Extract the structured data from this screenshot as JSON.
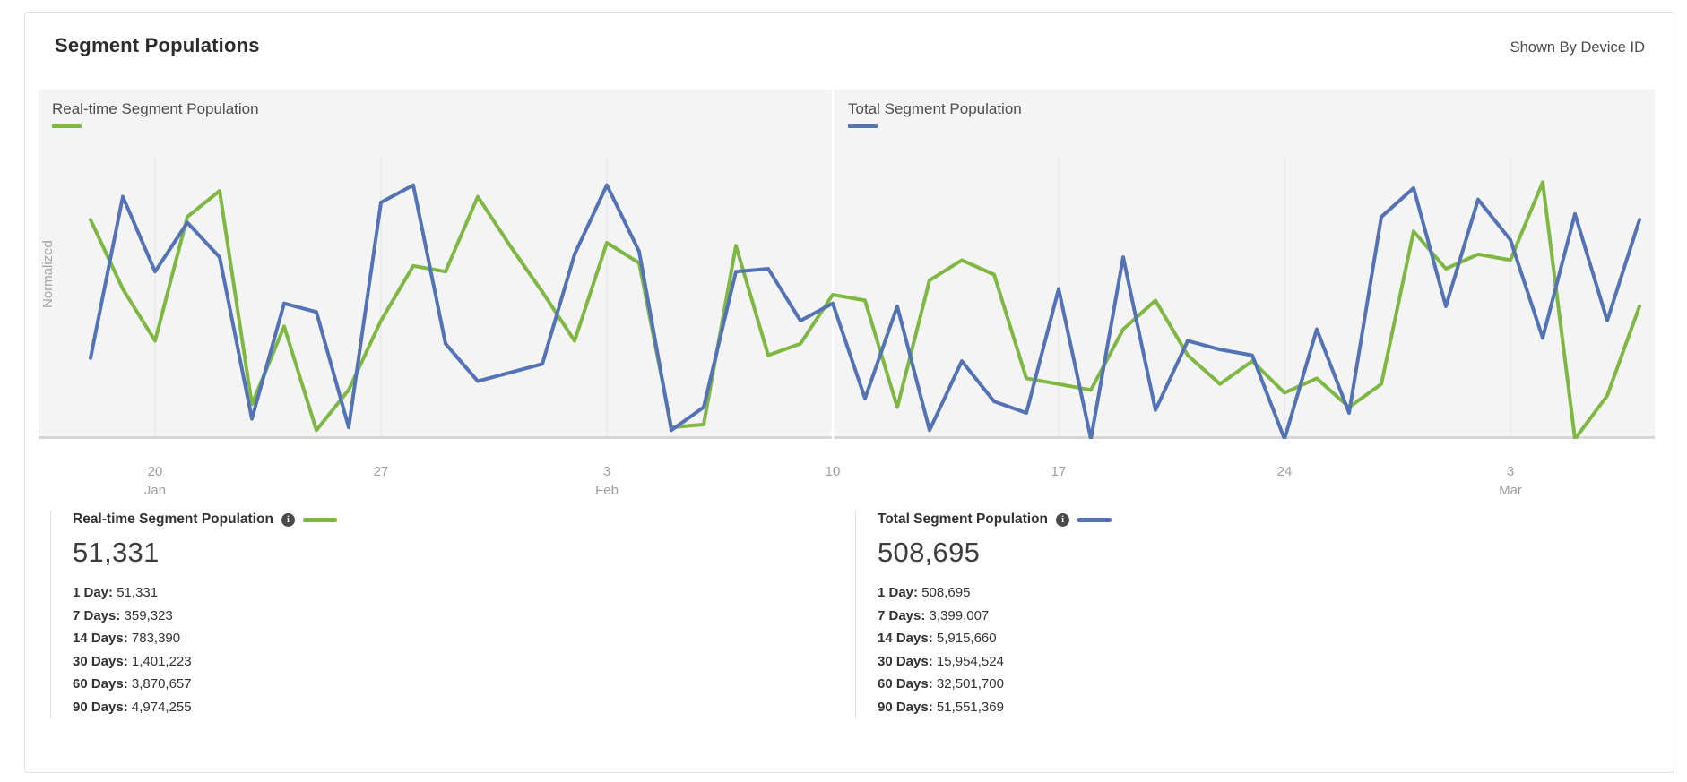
{
  "header": {
    "title": "Segment Populations",
    "shown_by": "Shown By Device ID"
  },
  "chart_panel": {
    "left_title": "Real-time Segment Population",
    "right_title": "Total Segment Population",
    "y_axis_label": "Normalized"
  },
  "colors": {
    "realtime_green": "#7EB843",
    "total_blue": "#5373B6",
    "panel_bg": "#f4f4f4",
    "gridline": "#e9e9e9",
    "axis_line": "#d2d2d2",
    "divider": "#ffffff"
  },
  "chart_data": {
    "type": "line",
    "title": "Segment Populations (normalized daily trend)",
    "ylabel": "Normalized",
    "ylim": [
      0,
      1
    ],
    "grid": "weekly-vertical",
    "legend_position": "top-inside",
    "x": [
      "Jan 18",
      "Jan 19",
      "Jan 20",
      "Jan 21",
      "Jan 22",
      "Jan 23",
      "Jan 24",
      "Jan 25",
      "Jan 26",
      "Jan 27",
      "Jan 28",
      "Jan 29",
      "Jan 30",
      "Jan 31",
      "Feb 1",
      "Feb 2",
      "Feb 3",
      "Feb 4",
      "Feb 5",
      "Feb 6",
      "Feb 7",
      "Feb 8",
      "Feb 9",
      "Feb 10",
      "Feb 11",
      "Feb 12",
      "Feb 13",
      "Feb 14",
      "Feb 15",
      "Feb 16",
      "Feb 17",
      "Feb 18",
      "Feb 19",
      "Feb 20",
      "Feb 21",
      "Feb 22",
      "Feb 23",
      "Feb 24",
      "Feb 25",
      "Feb 26",
      "Feb 27",
      "Feb 28",
      "Mar 1",
      "Mar 2",
      "Mar 3",
      "Mar 4",
      "Mar 5",
      "Mar 6",
      "Mar 7"
    ],
    "x_ticks": [
      {
        "label": "20",
        "sub": "Jan",
        "day_index": 2
      },
      {
        "label": "27",
        "day_index": 9
      },
      {
        "label": "3",
        "sub": "Feb",
        "day_index": 16
      },
      {
        "label": "10",
        "day_index": 23
      },
      {
        "label": "17",
        "day_index": 30
      },
      {
        "label": "24",
        "day_index": 37
      },
      {
        "label": "3",
        "sub": "Mar",
        "day_index": 44
      }
    ],
    "series": [
      {
        "name": "Real-time Segment Population",
        "color": "#7EB843",
        "values": [
          0.76,
          0.52,
          0.34,
          0.77,
          0.86,
          0.12,
          0.39,
          0.03,
          0.17,
          0.41,
          0.6,
          0.58,
          0.84,
          0.67,
          0.51,
          0.34,
          0.68,
          0.61,
          0.04,
          0.05,
          0.67,
          0.29,
          0.33,
          0.5,
          0.48,
          0.11,
          0.55,
          0.62,
          0.57,
          0.21,
          0.19,
          0.17,
          0.38,
          0.48,
          0.29,
          0.19,
          0.27,
          0.16,
          0.21,
          0.11,
          0.19,
          0.72,
          0.59,
          0.64,
          0.62,
          0.89,
          0.0,
          0.15,
          0.46
        ]
      },
      {
        "name": "Total Segment Population",
        "color": "#5373B6",
        "values": [
          0.28,
          0.84,
          0.58,
          0.75,
          0.63,
          0.07,
          0.47,
          0.44,
          0.04,
          0.82,
          0.88,
          0.33,
          0.2,
          0.23,
          0.26,
          0.64,
          0.88,
          0.65,
          0.03,
          0.11,
          0.58,
          0.59,
          0.41,
          0.47,
          0.14,
          0.46,
          0.03,
          0.27,
          0.13,
          0.09,
          0.52,
          0.0,
          0.63,
          0.1,
          0.34,
          0.31,
          0.29,
          0.0,
          0.38,
          0.09,
          0.77,
          0.87,
          0.46,
          0.83,
          0.69,
          0.35,
          0.78,
          0.41,
          0.76
        ]
      }
    ]
  },
  "legend": [
    {
      "title": "Real-time Segment Population",
      "color": "#7EB843",
      "total": "51,331",
      "rows": [
        {
          "label": "1 Day:",
          "value": "51,331"
        },
        {
          "label": "7 Days:",
          "value": "359,323"
        },
        {
          "label": "14 Days:",
          "value": "783,390"
        },
        {
          "label": "30 Days:",
          "value": "1,401,223"
        },
        {
          "label": "60 Days:",
          "value": "3,870,657"
        },
        {
          "label": "90 Days:",
          "value": "4,974,255"
        }
      ]
    },
    {
      "title": "Total Segment Population",
      "color": "#5373B6",
      "total": "508,695",
      "rows": [
        {
          "label": "1 Day:",
          "value": "508,695"
        },
        {
          "label": "7 Days:",
          "value": "3,399,007"
        },
        {
          "label": "14 Days:",
          "value": "5,915,660"
        },
        {
          "label": "30 Days:",
          "value": "15,954,524"
        },
        {
          "label": "60 Days:",
          "value": "32,501,700"
        },
        {
          "label": "90 Days:",
          "value": "51,551,369"
        }
      ]
    }
  ]
}
